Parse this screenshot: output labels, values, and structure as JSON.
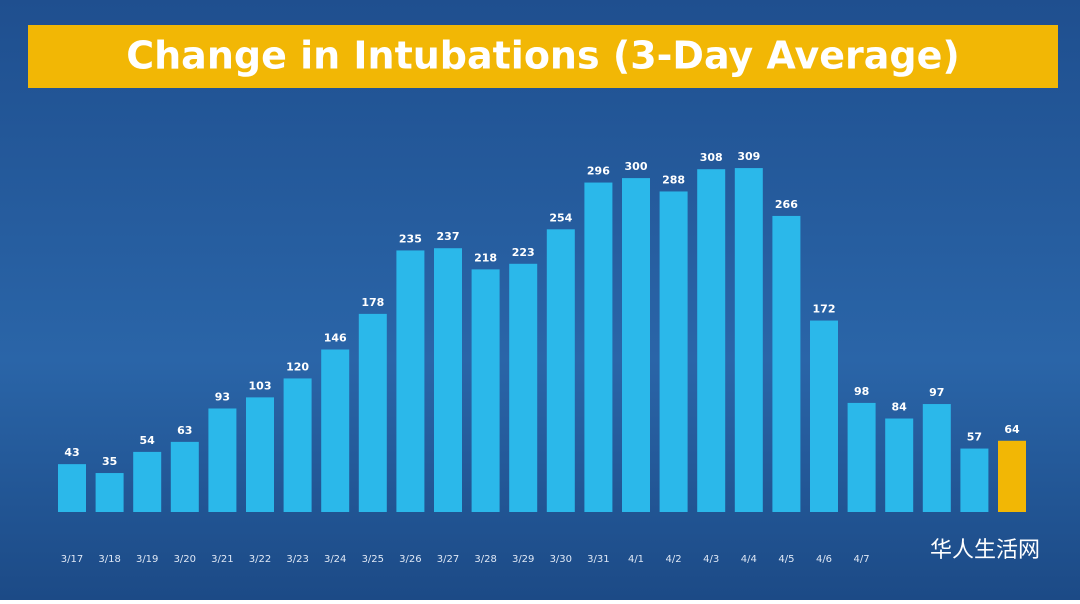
{
  "chart_data": {
    "type": "bar",
    "title": "Change in Intubations (3-Day Average)",
    "categories": [
      "3/17",
      "3/18",
      "3/19",
      "3/20",
      "3/21",
      "3/22",
      "3/23",
      "3/24",
      "3/25",
      "3/26",
      "3/27",
      "3/28",
      "3/29",
      "3/30",
      "3/31",
      "4/1",
      "4/2",
      "4/3",
      "4/4",
      "4/5",
      "4/6",
      "4/7",
      null,
      null,
      null,
      null
    ],
    "values": [
      43,
      35,
      54,
      63,
      93,
      103,
      120,
      146,
      178,
      235,
      237,
      218,
      223,
      254,
      296,
      300,
      288,
      308,
      309,
      266,
      172,
      98,
      84,
      97,
      57,
      64
    ],
    "colors": [
      "#2bb8ea",
      "#2bb8ea",
      "#2bb8ea",
      "#2bb8ea",
      "#2bb8ea",
      "#2bb8ea",
      "#2bb8ea",
      "#2bb8ea",
      "#2bb8ea",
      "#2bb8ea",
      "#2bb8ea",
      "#2bb8ea",
      "#2bb8ea",
      "#2bb8ea",
      "#2bb8ea",
      "#2bb8ea",
      "#2bb8ea",
      "#2bb8ea",
      "#2bb8ea",
      "#2bb8ea",
      "#2bb8ea",
      "#2bb8ea",
      "#2bb8ea",
      "#2bb8ea",
      "#2bb8ea",
      "#f2b705"
    ],
    "watermark": "华人生活网"
  }
}
